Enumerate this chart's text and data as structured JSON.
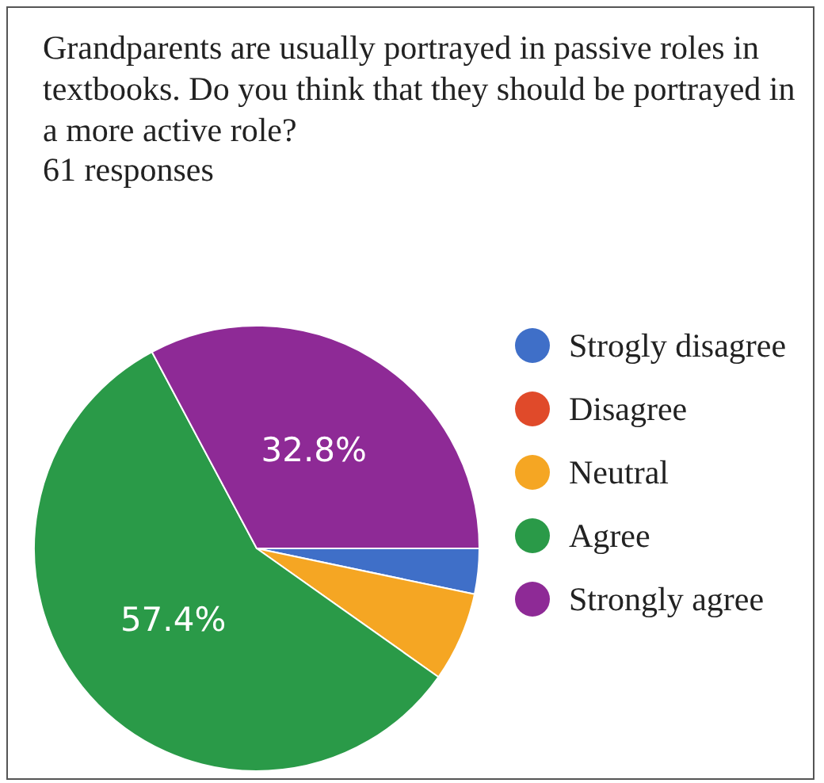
{
  "chart_data": {
    "type": "pie",
    "title": "Grandparents are usually portrayed in passive roles in textbooks. Do you think that they should be portrayed in a more active role?",
    "subtitle": "61 responses",
    "categories": [
      "Strogly disagree",
      "Disagree",
      "Neutral",
      "Agree",
      "Strongly agree"
    ],
    "values": [
      3.3,
      0,
      6.5,
      57.4,
      32.8
    ],
    "colors": [
      "#3f6fc8",
      "#e04a2a",
      "#f5a623",
      "#2a9a48",
      "#8e2a96"
    ],
    "value_labels": [
      null,
      null,
      null,
      "57.4%",
      "32.8%"
    ],
    "legend": "right"
  }
}
